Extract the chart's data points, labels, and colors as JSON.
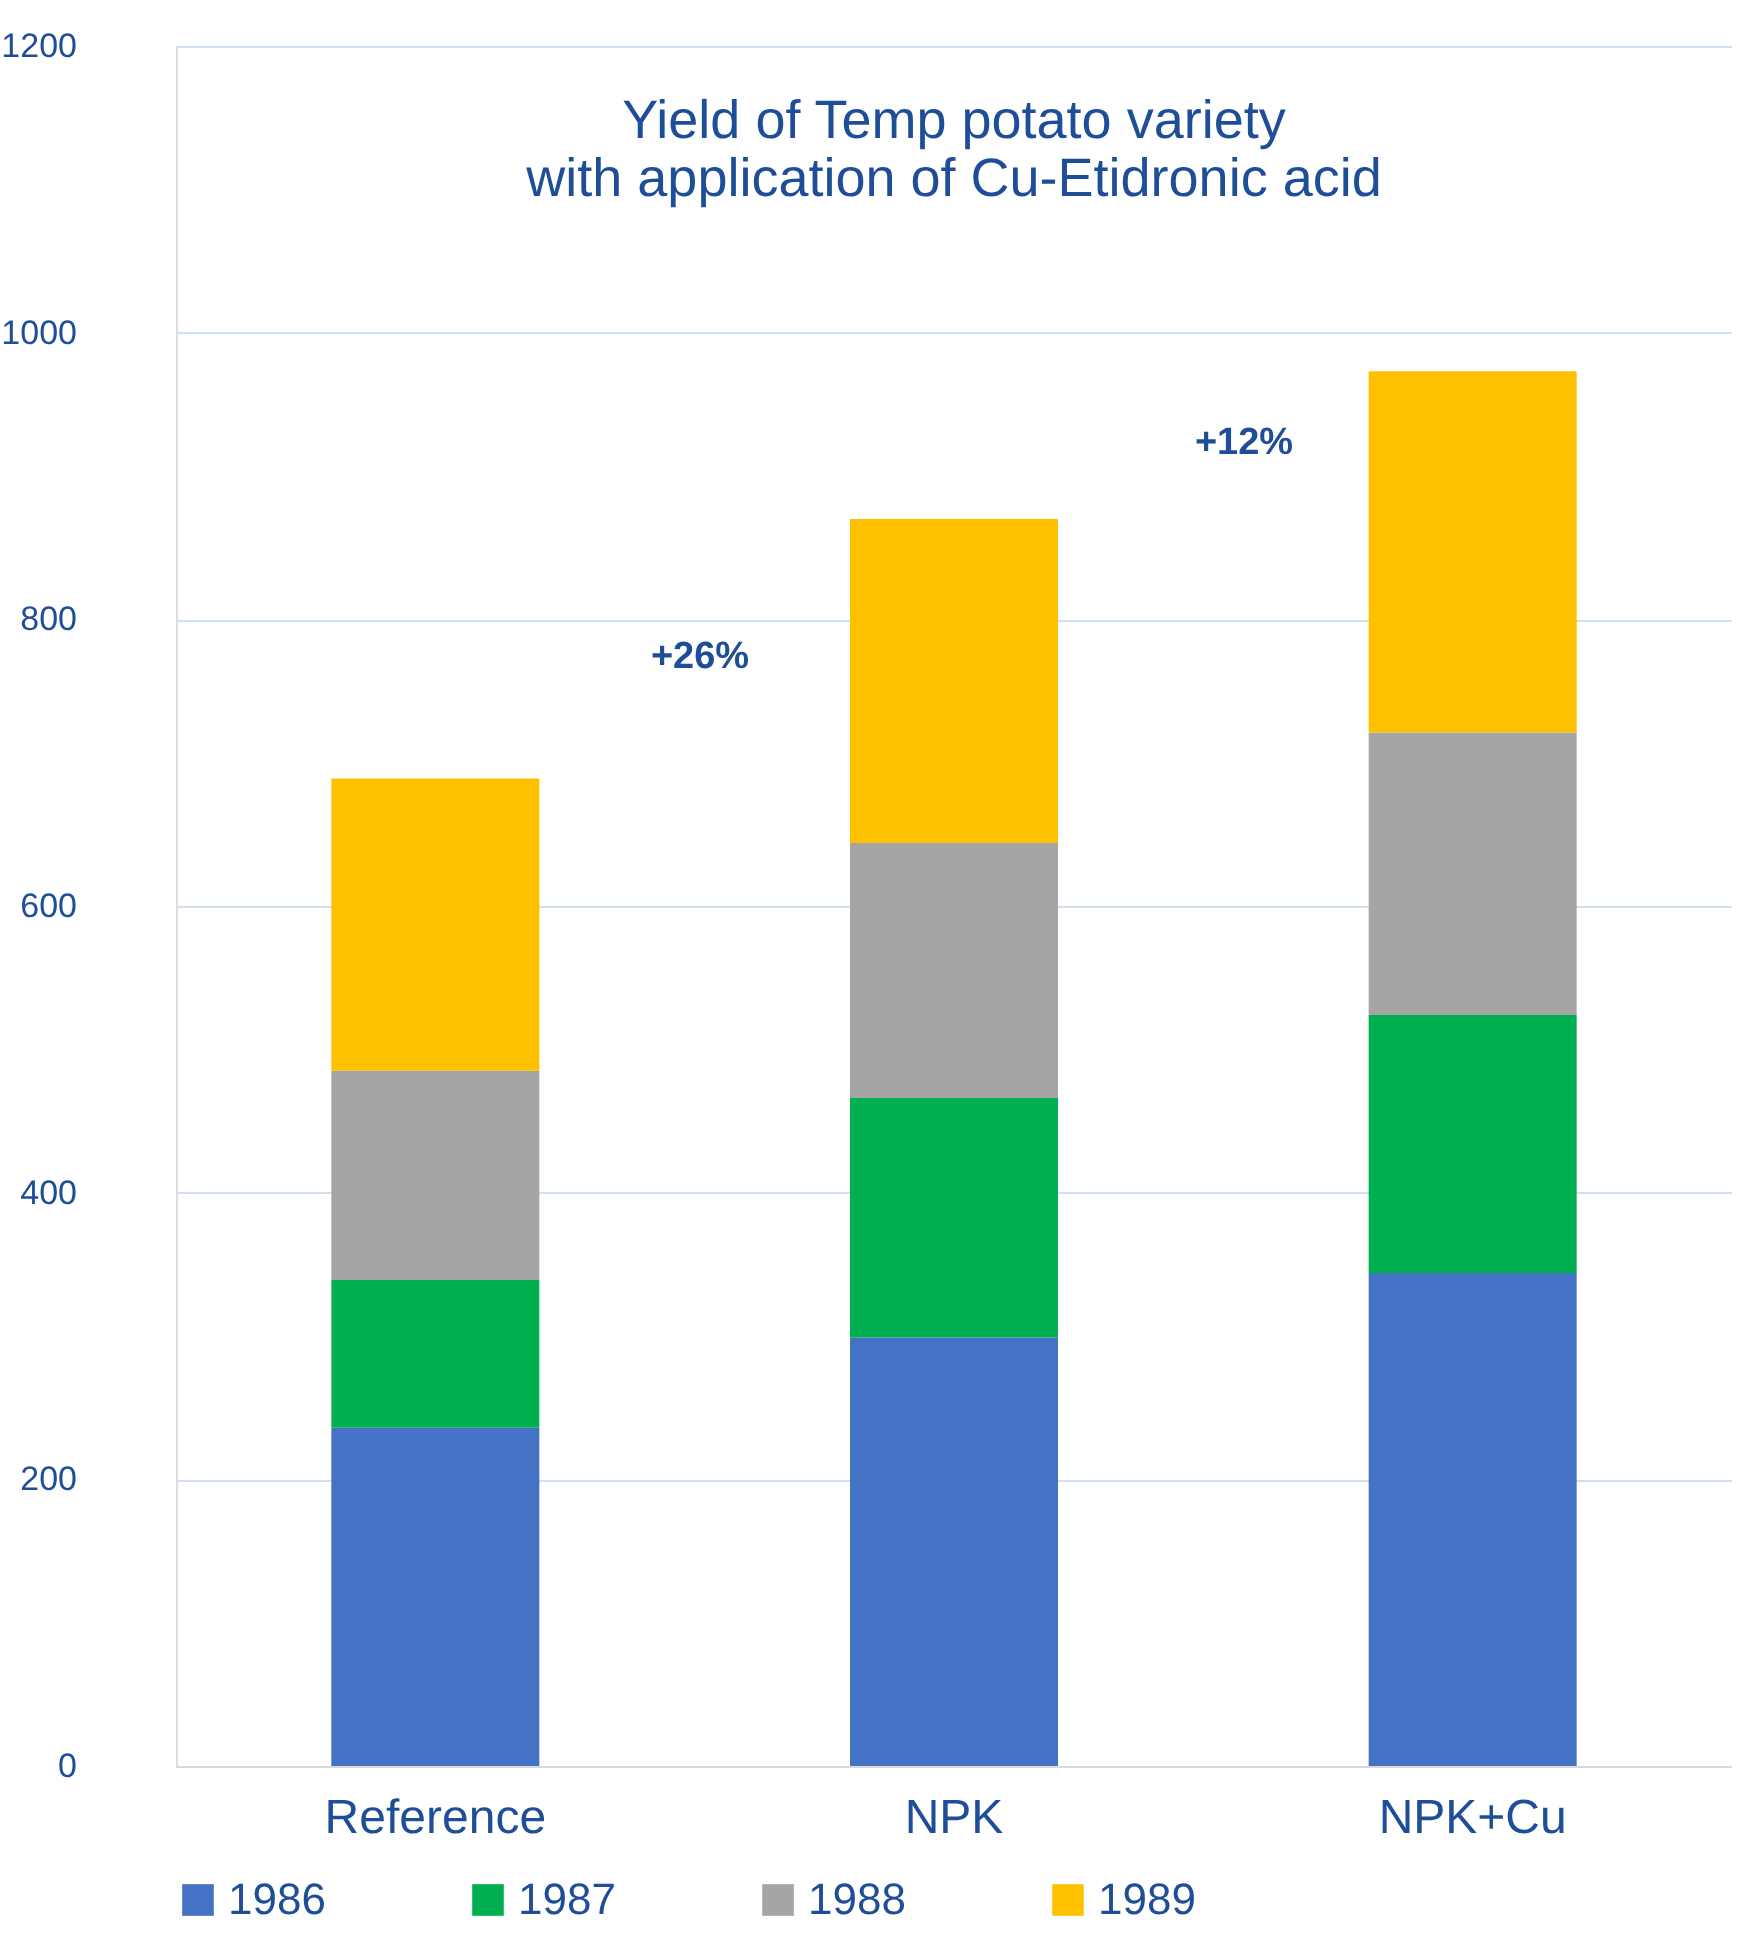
{
  "chart_data": {
    "type": "bar",
    "title": [
      "Yield of Temp potato variety",
      "with application of Cu-Etidronic acid"
    ],
    "categories": [
      "Reference",
      "NPK",
      "NPK+Cu"
    ],
    "stacked": true,
    "series": [
      {
        "name": "1986",
        "color": "#4472c4",
        "values": [
          236,
          299,
          344
        ]
      },
      {
        "name": "1987",
        "color": "#00b050",
        "values": [
          103,
          167,
          180
        ]
      },
      {
        "name": "1988",
        "color": "#a5a5a5",
        "values": [
          146,
          178,
          197
        ]
      },
      {
        "name": "1989",
        "color": "#ffc000",
        "values": [
          204,
          226,
          252
        ]
      }
    ],
    "ylim": [
      0,
      1200
    ],
    "yticks": [
      0,
      200,
      400,
      600,
      800,
      1000,
      1200
    ],
    "grid": "y",
    "legend": "bottom",
    "annotations": [
      "+26%",
      "+12%"
    ]
  }
}
